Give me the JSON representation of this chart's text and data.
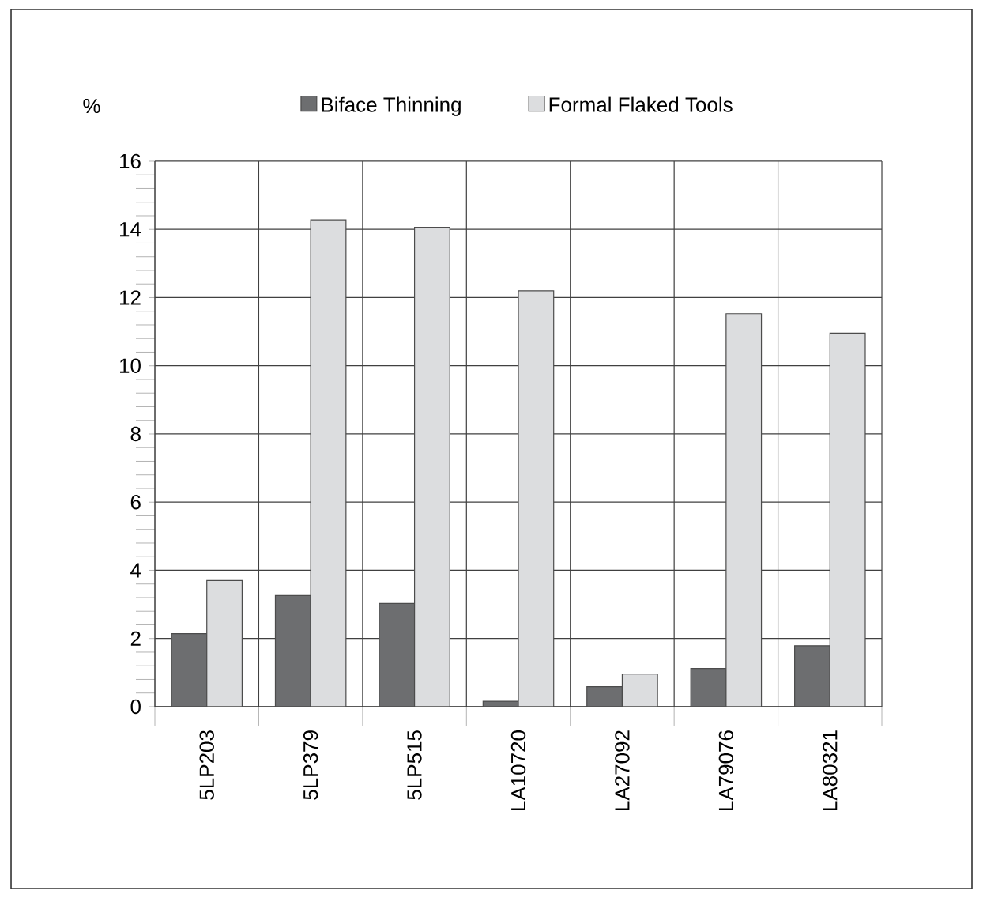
{
  "chart_data": {
    "type": "bar",
    "ylabel": "%",
    "categories": [
      "5LP203",
      "5LP379",
      "5LP515",
      "LA10720",
      "LA27092",
      "LA79076",
      "LA80321"
    ],
    "series": [
      {
        "name": "Biface Thinning",
        "color": "#6d6e70",
        "values": [
          2.14,
          3.26,
          3.03,
          0.16,
          0.59,
          1.12,
          1.79
        ]
      },
      {
        "name": "Formal Flaked Tools",
        "color": "#dcdddf",
        "values": [
          3.7,
          14.28,
          14.06,
          12.2,
          0.96,
          11.53,
          10.96
        ]
      }
    ],
    "ylim": [
      0,
      16
    ],
    "yticks": [
      0,
      2,
      4,
      6,
      8,
      10,
      12,
      14,
      16
    ],
    "grid": true,
    "legend": "top"
  }
}
